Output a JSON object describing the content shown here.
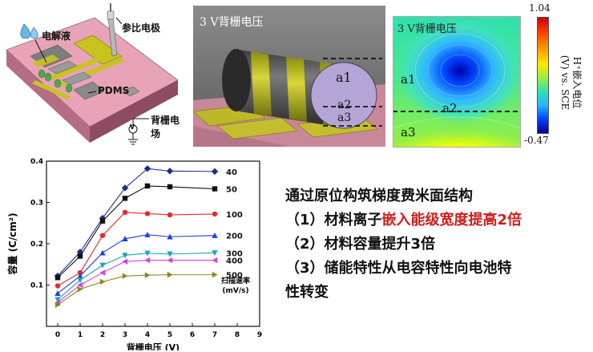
{
  "device": {
    "electrolyte_label": "电解液",
    "reference_label": "参比电极",
    "pdms_label": "PDMS",
    "gate_label": "背栅电场",
    "voltmeter_symbol": "V"
  },
  "render3d": {
    "title": "3 V背栅电压",
    "region_a1": "a1",
    "region_a2": "a2",
    "region_a3": "a3"
  },
  "simulation": {
    "title": "3 V背栅电压",
    "region_a1": "a1",
    "region_a2": "a2",
    "region_a3": "a3",
    "colorbar_max": "1.04",
    "colorbar_min": "-0.47",
    "colorbar_label_line1": "H⁺嵌入电位",
    "colorbar_label_line2": "(V) vs. SCE"
  },
  "chart_data": {
    "type": "line",
    "title": "",
    "xlabel": "背栅电压 (V)",
    "ylabel": "容量 (C/cm²)",
    "xlim": [
      -0.5,
      9
    ],
    "ylim": [
      0,
      0.4
    ],
    "xticks": [
      "0",
      "1",
      "2",
      "3",
      "4",
      "5",
      "6",
      "7",
      "8",
      "9"
    ],
    "yticks": [
      "0.1",
      "0.2",
      "0.3",
      "0.4"
    ],
    "x": [
      0,
      1,
      2,
      3,
      4,
      5,
      7
    ],
    "legend_title_line1": "扫描速率",
    "legend_title_line2": "(mV/s)",
    "series": [
      {
        "name": "40",
        "color": "#1f2a8c",
        "marker": "diamond",
        "values": [
          0.122,
          0.18,
          0.262,
          0.335,
          0.382,
          0.376,
          0.375
        ]
      },
      {
        "name": "50",
        "color": "#111111",
        "marker": "square",
        "values": [
          0.118,
          0.17,
          0.255,
          0.31,
          0.34,
          0.338,
          0.333
        ]
      },
      {
        "name": "100",
        "color": "#e52a2a",
        "marker": "circle",
        "values": [
          0.098,
          0.13,
          0.22,
          0.276,
          0.273,
          0.27,
          0.272
        ]
      },
      {
        "name": "200",
        "color": "#1f3fe0",
        "marker": "triangle",
        "values": [
          0.08,
          0.122,
          0.178,
          0.212,
          0.222,
          0.217,
          0.22
        ]
      },
      {
        "name": "300",
        "color": "#1aa6b8",
        "marker": "tri-down",
        "values": [
          0.065,
          0.112,
          0.148,
          0.172,
          0.177,
          0.175,
          0.178
        ]
      },
      {
        "name": "400",
        "color": "#d93fd9",
        "marker": "tri-left",
        "values": [
          0.058,
          0.1,
          0.13,
          0.157,
          0.16,
          0.16,
          0.16
        ]
      },
      {
        "name": "500",
        "color": "#8a8a1a",
        "marker": "tri-right",
        "values": [
          0.052,
          0.09,
          0.108,
          0.122,
          0.124,
          0.125,
          0.125
        ]
      }
    ]
  },
  "summary": {
    "heading": "通过原位构筑梯度费米面结构",
    "item1_prefix": "（1）材料离子",
    "item1_highlight": "嵌入能级宽度提高2倍",
    "item2": "（2）材料容量提升3倍",
    "item3_line1": "（3）储能特性从电容特性向电池特",
    "item3_line2": "性转变"
  },
  "colors": {
    "highlight": "#cc1f1f",
    "substrate": "#e8a3b8",
    "gold": "#c9c31f"
  }
}
